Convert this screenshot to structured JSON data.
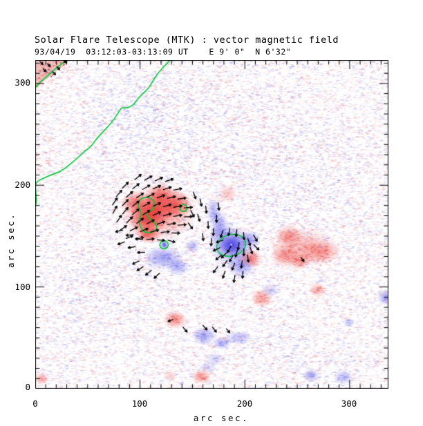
{
  "chart_data": {
    "type": "heatmap",
    "title": "Solar Flare Telescope (MTK) : vector magnetic field",
    "subtitle": "93/04/19  03:12:03-03:13:09 UT    E 9' 0\"  N 6'32\"",
    "xlabel": "arc sec.",
    "ylabel": "arc sec.",
    "xlim": [
      0,
      337
    ],
    "ylim": [
      0,
      323
    ],
    "xticks": [
      0,
      100,
      200,
      300
    ],
    "yticks": [
      0,
      100,
      200,
      300
    ],
    "xtick_labels": [
      "0",
      "100",
      "200",
      "300"
    ],
    "ytick_labels": [
      "0",
      "100",
      "200",
      "300"
    ],
    "minor_tick_step": 10,
    "grid": false,
    "legend": "none",
    "colors": {
      "positive": "#e8302c",
      "negative": "#4640e4",
      "positive_rgb": [
        232,
        48,
        44
      ],
      "negative_rgb": [
        70,
        64,
        228
      ],
      "noise_positive_rgb": [
        232,
        84,
        80
      ],
      "noise_negative_rgb": [
        112,
        108,
        230
      ],
      "contour": "#00c832",
      "vector": "#000000",
      "frame": "#000000",
      "background": "#ffffff"
    },
    "blobs": [
      [
        117,
        173,
        16,
        12,
        1,
        0.5,
        0
      ],
      [
        106,
        167,
        7,
        7,
        1,
        0.95,
        0
      ],
      [
        115,
        176,
        8,
        7,
        1,
        0.9,
        0
      ],
      [
        133,
        181,
        7,
        6,
        1,
        0.8,
        0
      ],
      [
        96,
        182,
        6,
        5,
        1,
        0.7,
        0
      ],
      [
        120,
        190,
        6,
        5,
        1,
        0.75,
        0
      ],
      [
        108,
        152,
        5,
        4,
        1,
        0.8,
        0
      ],
      [
        205,
        128,
        5,
        4,
        1,
        0.7,
        0
      ],
      [
        184,
        192,
        4,
        4,
        1,
        0.3,
        0
      ],
      [
        258,
        139,
        14,
        8,
        1,
        0.38,
        0
      ],
      [
        242,
        150,
        6,
        5,
        1,
        0.5,
        0
      ],
      [
        273,
        134,
        8,
        5,
        1,
        0.45,
        0
      ],
      [
        238,
        131,
        6,
        5,
        1,
        0.5,
        0
      ],
      [
        252,
        126,
        5,
        4,
        1,
        0.5,
        0
      ],
      [
        133,
        68,
        5,
        4,
        1,
        0.6,
        0
      ],
      [
        158,
        12,
        4,
        3,
        1,
        0.55,
        0
      ],
      [
        129,
        13,
        3,
        2.5,
        1,
        0.25,
        0
      ],
      [
        216,
        89,
        4.5,
        4,
        1,
        0.5,
        0
      ],
      [
        269,
        97,
        3.5,
        3,
        1,
        0.45,
        0
      ],
      [
        6,
        10,
        3,
        2.5,
        1,
        0.5,
        0
      ],
      [
        8,
        310,
        20,
        16,
        1,
        0.16,
        1
      ],
      [
        4,
        228,
        8,
        14,
        1,
        0.13,
        1
      ],
      [
        270,
        55,
        8,
        14,
        1,
        0.09,
        1
      ],
      [
        187,
        141,
        9,
        8,
        -1,
        0.8,
        0
      ],
      [
        187,
        141,
        4.5,
        4,
        -1,
        1,
        0
      ],
      [
        176,
        158,
        4,
        7,
        -1,
        0.55,
        0
      ],
      [
        170,
        174,
        3,
        6,
        -1,
        0.4,
        0
      ],
      [
        196,
        121,
        6,
        5,
        -1,
        0.5,
        0
      ],
      [
        205,
        147,
        4.5,
        4,
        -1,
        0.45,
        0
      ],
      [
        122,
        129,
        8,
        5,
        -1,
        0.55,
        0
      ],
      [
        136,
        120,
        5,
        4,
        -1,
        0.45,
        0
      ],
      [
        123,
        141.5,
        1.6,
        1.6,
        -1,
        0.95,
        0
      ],
      [
        150,
        140,
        3,
        3,
        -1,
        0.4,
        0
      ],
      [
        335,
        90,
        4,
        3.5,
        -1,
        0.55,
        0
      ],
      [
        299,
        65,
        2.5,
        2,
        -1,
        0.35,
        0
      ],
      [
        263,
        13,
        3.5,
        3,
        -1,
        0.45,
        0
      ],
      [
        294,
        11,
        4,
        3,
        -1,
        0.4,
        0
      ],
      [
        164,
        21,
        3.5,
        2.5,
        -1,
        0.25,
        0
      ],
      [
        161,
        52,
        5,
        4,
        -1,
        0.5,
        0
      ],
      [
        178,
        45,
        4,
        3,
        -1,
        0.45,
        0
      ],
      [
        194,
        50,
        6,
        3,
        -1,
        0.35,
        0
      ],
      [
        171,
        29,
        4,
        3,
        -1,
        0.25,
        0
      ],
      [
        224,
        97,
        4,
        3,
        -1,
        0.25,
        0
      ],
      [
        140,
        250,
        55,
        40,
        -1,
        0.1,
        1
      ],
      [
        260,
        200,
        45,
        35,
        -1,
        0.08,
        1
      ],
      [
        60,
        110,
        40,
        35,
        -1,
        0.08,
        1
      ],
      [
        250,
        40,
        30,
        20,
        -1,
        0.08,
        1
      ],
      [
        90,
        280,
        30,
        25,
        -1,
        0.1,
        1
      ]
    ],
    "contours": {
      "open": [
        [
          [
            129.5,
            323.8
          ],
          [
            123,
            317
          ],
          [
            117,
            310
          ],
          [
            112,
            302
          ],
          [
            108,
            295
          ],
          [
            98.5,
            286
          ],
          [
            94,
            279
          ],
          [
            87,
            275.5
          ],
          [
            82.6,
            277
          ],
          [
            78.7,
            270
          ],
          [
            72,
            260.5
          ],
          [
            64,
            251.7
          ],
          [
            58.2,
            245.6
          ],
          [
            53.5,
            238
          ],
          [
            47.6,
            234
          ],
          [
            39.7,
            226
          ],
          [
            32.4,
            220
          ],
          [
            24.5,
            213.6
          ],
          [
            14.5,
            210
          ],
          [
            5.9,
            206
          ],
          [
            0,
            202.7
          ],
          [
            0.5,
            192.5
          ],
          [
            1.3,
            183.7
          ],
          [
            0,
            178.9
          ]
        ],
        [
          [
            32.4,
            324
          ],
          [
            22.5,
            317.7
          ],
          [
            12.6,
            308.2
          ],
          [
            4.6,
            301.4
          ],
          [
            0.7,
            296.6
          ]
        ]
      ],
      "closed": [
        [
          [
            106.4,
            189.1
          ],
          [
            113,
            185.7
          ],
          [
            114.3,
            178.9
          ],
          [
            110.4,
            174.8
          ],
          [
            105.8,
            172.8
          ],
          [
            108.4,
            167.3
          ],
          [
            113.7,
            164.6
          ],
          [
            117,
            157.8
          ],
          [
            112.4,
            153.7
          ],
          [
            105.1,
            153.1
          ],
          [
            100.5,
            157.8
          ],
          [
            98.5,
            166
          ],
          [
            101.8,
            172.8
          ],
          [
            97.8,
            178.9
          ],
          [
            99.1,
            185.7
          ]
        ]
      ],
      "circles": [
        [
          141.4,
          177.6,
          3.5
        ],
        [
          122.9,
          141.5,
          4
        ]
      ],
      "ellipses": [
        [
          187,
          141,
          14,
          10.5,
          -15
        ]
      ]
    },
    "vectors": [
      [
        98,
        208,
        38,
        8
      ],
      [
        108,
        207,
        30,
        8
      ],
      [
        118,
        206,
        24,
        8
      ],
      [
        128,
        205,
        18,
        8
      ],
      [
        86,
        200,
        45,
        8
      ],
      [
        96,
        199,
        38,
        8
      ],
      [
        106,
        198,
        30,
        8
      ],
      [
        116,
        198,
        24,
        8
      ],
      [
        126,
        197,
        18,
        8
      ],
      [
        136,
        196,
        12,
        8
      ],
      [
        80,
        192,
        50,
        8
      ],
      [
        90,
        191,
        42,
        8
      ],
      [
        100,
        190,
        34,
        8
      ],
      [
        110,
        190,
        27,
        8
      ],
      [
        120,
        189,
        20,
        8
      ],
      [
        130,
        188,
        14,
        8
      ],
      [
        140,
        187,
        8,
        8
      ],
      [
        76,
        184,
        55,
        8
      ],
      [
        86,
        183,
        47,
        8
      ],
      [
        96,
        182,
        38,
        8
      ],
      [
        106,
        181,
        30,
        8
      ],
      [
        116,
        181,
        23,
        8
      ],
      [
        126,
        180,
        16,
        8
      ],
      [
        136,
        179,
        10,
        8
      ],
      [
        146,
        178,
        4,
        8
      ],
      [
        76,
        176,
        60,
        8
      ],
      [
        86,
        175,
        50,
        8
      ],
      [
        96,
        174,
        41,
        8
      ],
      [
        106,
        173,
        32,
        8
      ],
      [
        116,
        172,
        24,
        8
      ],
      [
        126,
        171,
        16,
        8
      ],
      [
        136,
        170,
        9,
        8
      ],
      [
        146,
        169,
        2,
        8
      ],
      [
        80,
        167,
        55,
        8
      ],
      [
        90,
        166,
        46,
        8
      ],
      [
        100,
        165,
        37,
        8
      ],
      [
        110,
        164,
        28,
        8
      ],
      [
        120,
        163,
        19,
        8
      ],
      [
        130,
        162,
        10,
        8
      ],
      [
        140,
        161,
        3,
        8
      ],
      [
        84,
        158,
        35,
        8
      ],
      [
        94,
        157,
        28,
        8
      ],
      [
        104,
        156,
        21,
        8
      ],
      [
        114,
        155,
        14,
        8
      ],
      [
        124,
        154,
        6,
        8
      ],
      [
        134,
        153,
        -2,
        8
      ],
      [
        90,
        149,
        22,
        7
      ],
      [
        100,
        148,
        14,
        7
      ],
      [
        110,
        147,
        5,
        7
      ],
      [
        120,
        146,
        -5,
        7
      ],
      [
        130,
        145,
        -15,
        7
      ],
      [
        148,
        160,
        -55,
        7
      ],
      [
        150,
        172,
        -62,
        7
      ],
      [
        152,
        190,
        -70,
        7
      ],
      [
        158,
        183,
        -78,
        7
      ],
      [
        163,
        176,
        -84,
        7
      ],
      [
        156,
        168,
        -74,
        7
      ],
      [
        165,
        161,
        -88,
        7
      ],
      [
        170,
        154,
        -94,
        7
      ],
      [
        160,
        149,
        -84,
        7
      ],
      [
        168,
        144,
        -96,
        7
      ],
      [
        173,
        167,
        -90,
        7
      ],
      [
        175,
        179,
        -84,
        7
      ],
      [
        178,
        152,
        250,
        7
      ],
      [
        185,
        154,
        258,
        7
      ],
      [
        192,
        153,
        264,
        7
      ],
      [
        199,
        150,
        274,
        7
      ],
      [
        204,
        144,
        288,
        7
      ],
      [
        176,
        145,
        200,
        7
      ],
      [
        173,
        137,
        206,
        7
      ],
      [
        175,
        129,
        220,
        7
      ],
      [
        181,
        123,
        234,
        7
      ],
      [
        189,
        120,
        250,
        7
      ],
      [
        197,
        122,
        262,
        7
      ],
      [
        203,
        128,
        279,
        7
      ],
      [
        206,
        136,
        288,
        7
      ],
      [
        185,
        137,
        240,
        7
      ],
      [
        192,
        133,
        254,
        7
      ],
      [
        180,
        131,
        226,
        7
      ],
      [
        187,
        128,
        242,
        7
      ],
      [
        194,
        140,
        262,
        7
      ],
      [
        199,
        134,
        270,
        7
      ],
      [
        210,
        148,
        300,
        7
      ],
      [
        211,
        139,
        315,
        7
      ],
      [
        180,
        112,
        252,
        7
      ],
      [
        190,
        108,
        260,
        7
      ],
      [
        172,
        117,
        234,
        7
      ],
      [
        198,
        112,
        266,
        7
      ],
      [
        80,
        155,
        195,
        7
      ],
      [
        90,
        151,
        185,
        7
      ],
      [
        99,
        147,
        175,
        7
      ],
      [
        82,
        143,
        200,
        7
      ],
      [
        92,
        139,
        190,
        7
      ],
      [
        101,
        134,
        182,
        7
      ],
      [
        100,
        118,
        212,
        7
      ],
      [
        108,
        114,
        218,
        7
      ],
      [
        116,
        111,
        224,
        7
      ],
      [
        96,
        124,
        206,
        7
      ],
      [
        129,
        67,
        200,
        5
      ],
      [
        255,
        127,
        -55,
        5
      ],
      [
        143,
        58,
        310,
        6
      ],
      [
        162,
        60,
        312,
        6
      ],
      [
        171,
        58,
        308,
        6
      ],
      [
        184,
        57,
        310,
        5
      ],
      [
        6,
        320,
        315,
        4
      ],
      [
        13,
        318,
        318,
        4
      ],
      [
        22,
        315,
        312,
        4
      ],
      [
        9,
        313,
        316,
        4
      ],
      [
        18,
        310,
        314,
        4
      ],
      [
        28,
        322,
        310,
        4
      ]
    ],
    "corner_patch": {
      "points": [
        [
          0,
          323
        ],
        [
          33,
          323
        ],
        [
          0,
          295
        ]
      ],
      "fill": "rgba(232,150,142,0.55)",
      "speck_rgb": [
        190,
        40,
        40
      ]
    },
    "noise": {
      "count": 25000,
      "seed": 930419
    },
    "core_highlight": {
      "x": 187,
      "y": 141.5,
      "color": "#ffffff"
    }
  }
}
